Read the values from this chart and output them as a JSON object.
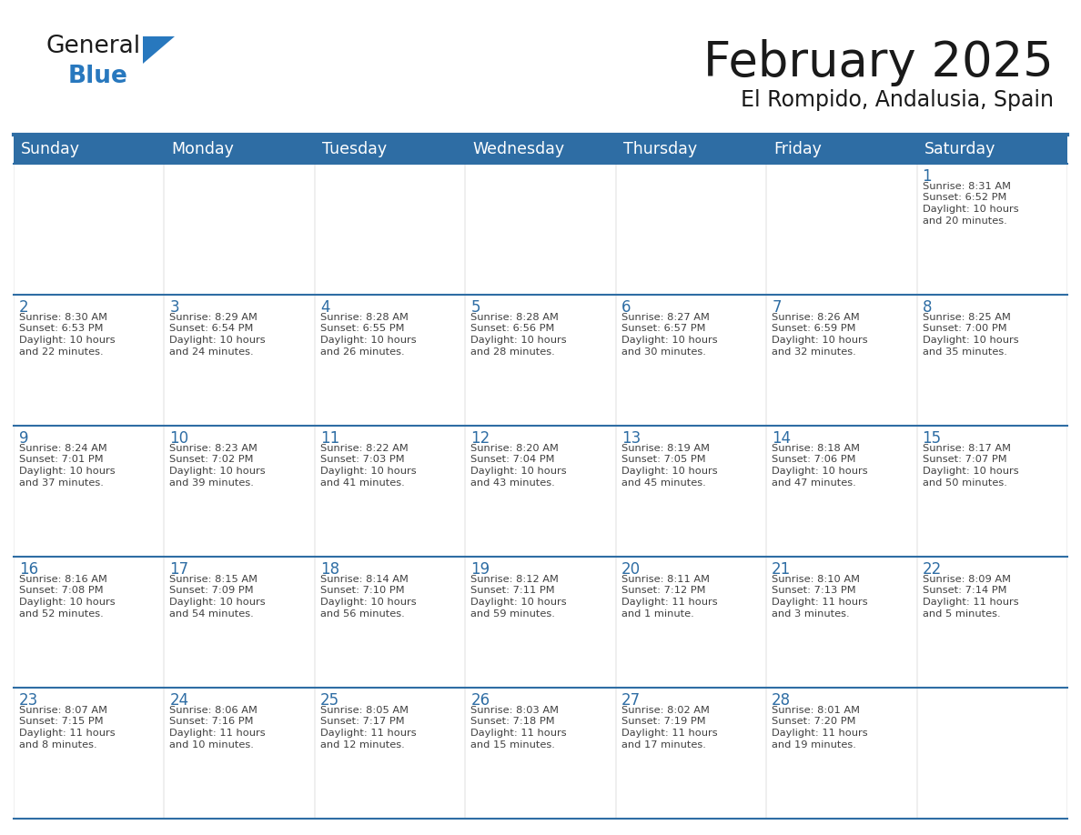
{
  "title": "February 2025",
  "subtitle": "El Rompido, Andalusia, Spain",
  "days_of_week": [
    "Sunday",
    "Monday",
    "Tuesday",
    "Wednesday",
    "Thursday",
    "Friday",
    "Saturday"
  ],
  "header_bg": "#2E6DA4",
  "header_text": "#FFFFFF",
  "cell_bg": "#FFFFFF",
  "row_sep_color": "#E8E8E8",
  "line_color": "#2E6DA4",
  "text_color": "#404040",
  "day_num_color": "#2E6DA4",
  "logo_general_color": "#1a1a1a",
  "logo_blue_color": "#2878BE",
  "weeks": [
    [
      {
        "day": null,
        "info": null
      },
      {
        "day": null,
        "info": null
      },
      {
        "day": null,
        "info": null
      },
      {
        "day": null,
        "info": null
      },
      {
        "day": null,
        "info": null
      },
      {
        "day": null,
        "info": null
      },
      {
        "day": 1,
        "info": "Sunrise: 8:31 AM\nSunset: 6:52 PM\nDaylight: 10 hours\nand 20 minutes."
      }
    ],
    [
      {
        "day": 2,
        "info": "Sunrise: 8:30 AM\nSunset: 6:53 PM\nDaylight: 10 hours\nand 22 minutes."
      },
      {
        "day": 3,
        "info": "Sunrise: 8:29 AM\nSunset: 6:54 PM\nDaylight: 10 hours\nand 24 minutes."
      },
      {
        "day": 4,
        "info": "Sunrise: 8:28 AM\nSunset: 6:55 PM\nDaylight: 10 hours\nand 26 minutes."
      },
      {
        "day": 5,
        "info": "Sunrise: 8:28 AM\nSunset: 6:56 PM\nDaylight: 10 hours\nand 28 minutes."
      },
      {
        "day": 6,
        "info": "Sunrise: 8:27 AM\nSunset: 6:57 PM\nDaylight: 10 hours\nand 30 minutes."
      },
      {
        "day": 7,
        "info": "Sunrise: 8:26 AM\nSunset: 6:59 PM\nDaylight: 10 hours\nand 32 minutes."
      },
      {
        "day": 8,
        "info": "Sunrise: 8:25 AM\nSunset: 7:00 PM\nDaylight: 10 hours\nand 35 minutes."
      }
    ],
    [
      {
        "day": 9,
        "info": "Sunrise: 8:24 AM\nSunset: 7:01 PM\nDaylight: 10 hours\nand 37 minutes."
      },
      {
        "day": 10,
        "info": "Sunrise: 8:23 AM\nSunset: 7:02 PM\nDaylight: 10 hours\nand 39 minutes."
      },
      {
        "day": 11,
        "info": "Sunrise: 8:22 AM\nSunset: 7:03 PM\nDaylight: 10 hours\nand 41 minutes."
      },
      {
        "day": 12,
        "info": "Sunrise: 8:20 AM\nSunset: 7:04 PM\nDaylight: 10 hours\nand 43 minutes."
      },
      {
        "day": 13,
        "info": "Sunrise: 8:19 AM\nSunset: 7:05 PM\nDaylight: 10 hours\nand 45 minutes."
      },
      {
        "day": 14,
        "info": "Sunrise: 8:18 AM\nSunset: 7:06 PM\nDaylight: 10 hours\nand 47 minutes."
      },
      {
        "day": 15,
        "info": "Sunrise: 8:17 AM\nSunset: 7:07 PM\nDaylight: 10 hours\nand 50 minutes."
      }
    ],
    [
      {
        "day": 16,
        "info": "Sunrise: 8:16 AM\nSunset: 7:08 PM\nDaylight: 10 hours\nand 52 minutes."
      },
      {
        "day": 17,
        "info": "Sunrise: 8:15 AM\nSunset: 7:09 PM\nDaylight: 10 hours\nand 54 minutes."
      },
      {
        "day": 18,
        "info": "Sunrise: 8:14 AM\nSunset: 7:10 PM\nDaylight: 10 hours\nand 56 minutes."
      },
      {
        "day": 19,
        "info": "Sunrise: 8:12 AM\nSunset: 7:11 PM\nDaylight: 10 hours\nand 59 minutes."
      },
      {
        "day": 20,
        "info": "Sunrise: 8:11 AM\nSunset: 7:12 PM\nDaylight: 11 hours\nand 1 minute."
      },
      {
        "day": 21,
        "info": "Sunrise: 8:10 AM\nSunset: 7:13 PM\nDaylight: 11 hours\nand 3 minutes."
      },
      {
        "day": 22,
        "info": "Sunrise: 8:09 AM\nSunset: 7:14 PM\nDaylight: 11 hours\nand 5 minutes."
      }
    ],
    [
      {
        "day": 23,
        "info": "Sunrise: 8:07 AM\nSunset: 7:15 PM\nDaylight: 11 hours\nand 8 minutes."
      },
      {
        "day": 24,
        "info": "Sunrise: 8:06 AM\nSunset: 7:16 PM\nDaylight: 11 hours\nand 10 minutes."
      },
      {
        "day": 25,
        "info": "Sunrise: 8:05 AM\nSunset: 7:17 PM\nDaylight: 11 hours\nand 12 minutes."
      },
      {
        "day": 26,
        "info": "Sunrise: 8:03 AM\nSunset: 7:18 PM\nDaylight: 11 hours\nand 15 minutes."
      },
      {
        "day": 27,
        "info": "Sunrise: 8:02 AM\nSunset: 7:19 PM\nDaylight: 11 hours\nand 17 minutes."
      },
      {
        "day": 28,
        "info": "Sunrise: 8:01 AM\nSunset: 7:20 PM\nDaylight: 11 hours\nand 19 minutes."
      },
      {
        "day": null,
        "info": null
      }
    ]
  ]
}
